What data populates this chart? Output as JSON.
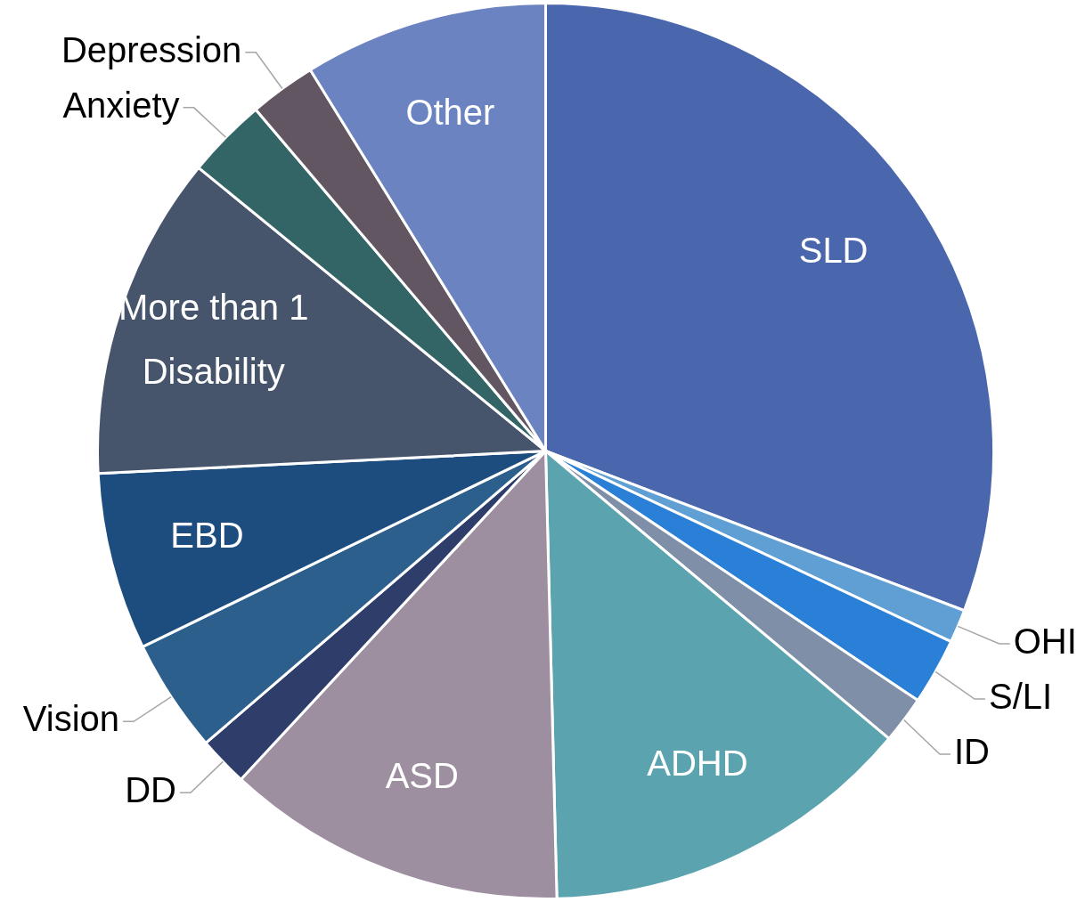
{
  "chart_data": {
    "type": "pie",
    "categories": [
      "SLD",
      "OHI",
      "S/LI",
      "ID",
      "ADHD",
      "ASD",
      "DD",
      "Vision",
      "EBD",
      "More than 1 Disability",
      "Anxiety",
      "Depression",
      "Other"
    ],
    "values": [
      30.8,
      1.2,
      2.4,
      1.7,
      13.5,
      12.3,
      1.8,
      4.1,
      6.4,
      11.7,
      2.9,
      2.4,
      8.8
    ],
    "colors": [
      "#4a67ae",
      "#5f9fd4",
      "#2a7fd6",
      "#7f8fa8",
      "#5ba3ae",
      "#9d8fa0",
      "#2e3d6a",
      "#2c5f8c",
      "#1d4d7e",
      "#46556c",
      "#336466",
      "#625663",
      "#6b83c0"
    ],
    "legend": false
  }
}
